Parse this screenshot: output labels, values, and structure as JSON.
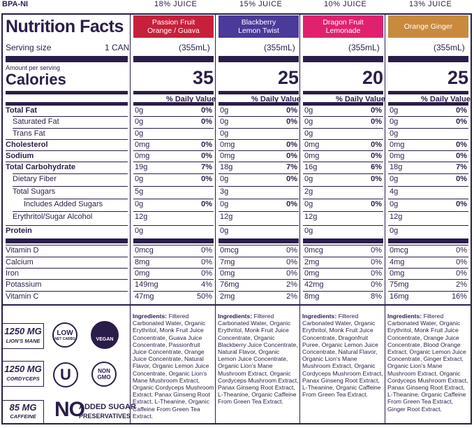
{
  "header": {
    "bpa": "BPA-NI",
    "title": "Nutrition Facts"
  },
  "serving": {
    "label": "Serving size",
    "value": "1 CAN"
  },
  "amount_per_serving": "Amount per serving",
  "calories_label": "Calories",
  "dv_label": "% Daily Value",
  "columns": [
    {
      "juice": "18% JUICE",
      "flavor_line1": "Passion Fruit",
      "flavor_line2": "Orange / Guava",
      "color": "#c8203a",
      "volume": "(355mL)",
      "calories": "35",
      "rows": [
        [
          "0g",
          "0%"
        ],
        [
          "0g",
          "0%"
        ],
        [
          "0g",
          ""
        ],
        [
          "0mg",
          "0%"
        ],
        [
          "0mg",
          "0%"
        ],
        [
          "19g",
          "7%"
        ],
        [
          "0g",
          "0%"
        ],
        [
          "5g",
          ""
        ],
        [
          "0g",
          "0%"
        ],
        [
          "12g",
          ""
        ],
        [
          "0g",
          ""
        ],
        [
          "0mcg",
          "0%"
        ],
        [
          "8mg",
          "0%"
        ],
        [
          "0mg",
          "0%"
        ],
        [
          "149mg",
          "4%"
        ],
        [
          "47mg",
          "50%"
        ]
      ],
      "ingredients": "Carbonated Water, Organic Erythritol, Monk Fruit Juice Concentrate, Guava Juice Concentrate, Passionfruit Juice Concentrate, Orange Juice Concentrate, Natural Flavor, Organic Lemon Juice Concentrate, Organic Lion's Mane Mushroom Extract, Organic Cordyceps Mushroom Extract, Panax Ginseng Root Extract, L-Theanine, Organic Caffeine From Green Tea Extract."
    },
    {
      "juice": "15% JUICE",
      "flavor_line1": "Blackberry",
      "flavor_line2": "Lemon Twist",
      "color": "#4b3a9a",
      "volume": "(355mL)",
      "calories": "25",
      "rows": [
        [
          "0g",
          "0%"
        ],
        [
          "0g",
          "0%"
        ],
        [
          "0g",
          ""
        ],
        [
          "0mg",
          "0%"
        ],
        [
          "0mg",
          "0%"
        ],
        [
          "18g",
          "7%"
        ],
        [
          "0g",
          "0%"
        ],
        [
          "3g",
          ""
        ],
        [
          "0g",
          "0%"
        ],
        [
          "12g",
          ""
        ],
        [
          "0g",
          ""
        ],
        [
          "0mcg",
          "0%"
        ],
        [
          "7mg",
          "0%"
        ],
        [
          "0mg",
          "0%"
        ],
        [
          "76mg",
          "2%"
        ],
        [
          "2mg",
          "2%"
        ]
      ],
      "ingredients": "Carbonated Water, Organic Erythritol, Monk Fruit Juice Concentrate, Organic Blackberry Juice Concentrate, Natural Flavor, Organic Lemon Juice Concentrate, Organic Lion's Mane Mushroom Extract, Organic Cordyceps Mushroom Extract, Panax Ginseng Root Extract, L-Theanine, Organic Caffeine From Green Tea Extract."
    },
    {
      "juice": "10% JUICE",
      "flavor_line1": "Dragon Fruit",
      "flavor_line2": "Lemonade",
      "color": "#e0226e",
      "volume": "(355mL)",
      "calories": "20",
      "rows": [
        [
          "0g",
          "0%"
        ],
        [
          "0g",
          "0%"
        ],
        [
          "0g",
          ""
        ],
        [
          "0mg",
          "0%"
        ],
        [
          "0mg",
          "0%"
        ],
        [
          "16g",
          "6%"
        ],
        [
          "0g",
          "0%"
        ],
        [
          "2g",
          ""
        ],
        [
          "0g",
          "0%"
        ],
        [
          "12g",
          ""
        ],
        [
          "0g",
          ""
        ],
        [
          "0mcg",
          "0%"
        ],
        [
          "2mg",
          "0%"
        ],
        [
          "0mg",
          "0%"
        ],
        [
          "42mg",
          "0%"
        ],
        [
          "8mg",
          "8%"
        ]
      ],
      "ingredients": "Carbonated Water, Organic Erythritol, Monk Fruit Juice Concentrate, Dragonfruit Puree, Organic Lemon Juice Concentrate, Natural Flavor, Organic Lion's Mane Mushroom Extract, Organic Cordyceps Mushroom Extract, Panax Ginseng Root Extract, L-Theanine, Organic Caffeine From Green Tea Extract."
    },
    {
      "juice": "13% JUICE",
      "flavor_line1": "Orange Ginger",
      "flavor_line2": "",
      "color": "#c98a3e",
      "volume": "(355mL)",
      "calories": "25",
      "rows": [
        [
          "0g",
          "0%"
        ],
        [
          "0g",
          "0%"
        ],
        [
          "0g",
          ""
        ],
        [
          "0mg",
          "0%"
        ],
        [
          "0mg",
          "0%"
        ],
        [
          "18g",
          "7%"
        ],
        [
          "0g",
          "0%"
        ],
        [
          "4g",
          ""
        ],
        [
          "0g",
          "0%"
        ],
        [
          "12g",
          ""
        ],
        [
          "0g",
          ""
        ],
        [
          "0mcg",
          "0%"
        ],
        [
          "4mg",
          "0%"
        ],
        [
          "0mg",
          "0%"
        ],
        [
          "75mg",
          "2%"
        ],
        [
          "16mg",
          "16%"
        ]
      ],
      "ingredients": "Carbonated Water, Organic Erythritol, Monk Fruit Juice Concentrate, Orange Juice Concentrate, Blood Orange Extract, Organic Lemon Juice Concentrate, Ginger Extract, Organic Lion's Mane Mushroom Extract, Organic Cordyceps Mushroom Extract, Panax Ginseng Root Extract, L-Theanine, Organic Caffeine From Green Tea Extract, Ginger Root Extract."
    }
  ],
  "row_labels": [
    "Total Fat",
    "Saturated Fat",
    "Trans Fat",
    "Cholesterol",
    "Sodium",
    "Total Carbohydrate",
    "Dietary Fiber",
    "Total Sugars",
    "Includes Added Sugars",
    "Erythritol/Sugar Alcohol",
    "Protein",
    "Vitamin D",
    "Calcium",
    "Iron",
    "Potassium",
    "Vitamin C"
  ],
  "ingredients_label": "Ingredients:",
  "filtered_word": "Filtered",
  "badges": {
    "lions_mane_amount": "1250 MG",
    "lions_mane_label": "LION'S MANE",
    "cordyceps_amount": "1250 MG",
    "cordyceps_label": "CORDYCEPS",
    "caffeine_amount": "85 MG",
    "caffeine_label": "CAFFEINE",
    "low_net_carbs_1": "LOW",
    "low_net_carbs_2": "NET CARBS",
    "vegan": "VEGAN",
    "kosher": "U",
    "non_gmo_1": "NON",
    "non_gmo_2": "GMO",
    "no": "NO",
    "added_sugar": "ADDED SUGAR",
    "preservatives": "PRESERVATIVES"
  }
}
